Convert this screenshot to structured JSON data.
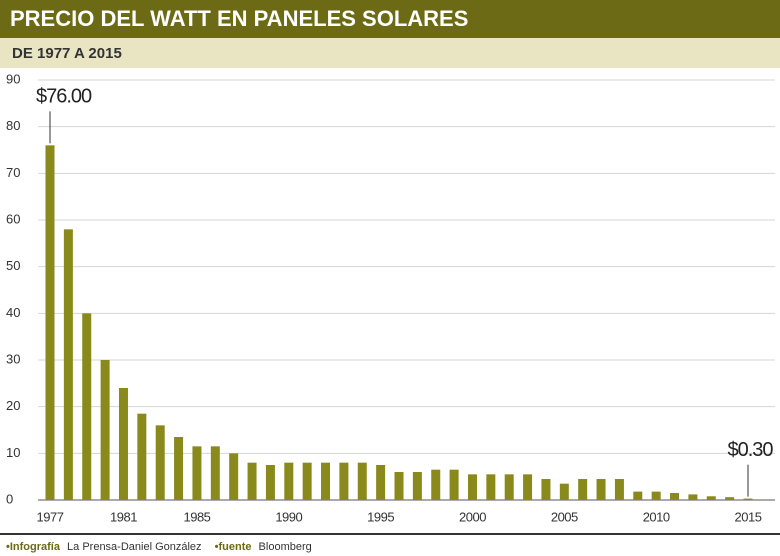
{
  "chart_data": {
    "type": "bar",
    "title": "PRECIO DEL WATT EN PANELES SOLARES",
    "subtitle": "DE 1977 A 2015",
    "categories": [
      "1977",
      null,
      null,
      null,
      "1981",
      null,
      null,
      null,
      "1985",
      null,
      null,
      null,
      null,
      "1990",
      null,
      null,
      null,
      null,
      "1995",
      null,
      null,
      null,
      null,
      "2000",
      null,
      null,
      null,
      null,
      "2005",
      null,
      null,
      null,
      null,
      "2010",
      null,
      null,
      null,
      null,
      "2015"
    ],
    "values": [
      76,
      58,
      40,
      30,
      24,
      18.5,
      16,
      13.5,
      11.5,
      11.5,
      10,
      8,
      7.5,
      8,
      8,
      8,
      8,
      8,
      7.5,
      6,
      6,
      6.5,
      6.5,
      5.5,
      5.5,
      5.5,
      5.5,
      4.5,
      3.5,
      4.5,
      4.5,
      4.5,
      1.8,
      1.8,
      1.5,
      1.2,
      0.8,
      0.6,
      0.3
    ],
    "value_labels": [
      "$76.00",
      null,
      null,
      null,
      null,
      null,
      null,
      null,
      null,
      null,
      null,
      null,
      null,
      null,
      null,
      null,
      null,
      null,
      null,
      null,
      null,
      null,
      null,
      null,
      null,
      null,
      null,
      null,
      null,
      null,
      null,
      null,
      null,
      null,
      null,
      null,
      null,
      null,
      "$0.30"
    ],
    "color": "#8a8a1c",
    "ylim": [
      0,
      90
    ],
    "yticks": [
      0,
      10,
      20,
      30,
      40,
      50,
      60,
      70,
      80,
      90
    ],
    "grid": true,
    "credit_label": "•Infografía",
    "credit": "La Prensa-Daniel González",
    "source_label": "•fuente",
    "source": "Bloomberg"
  }
}
